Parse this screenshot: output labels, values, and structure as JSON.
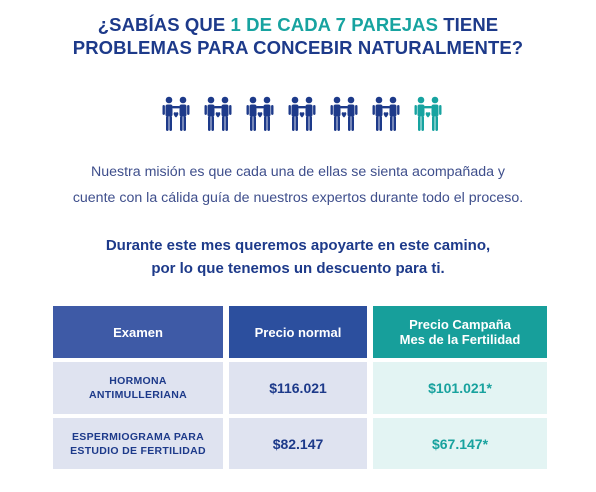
{
  "headline": {
    "line1_start": "¿SABÍAS QUE ",
    "line1_accent": "1 DE CADA 7 PAREJAS",
    "line1_end": " TIENE",
    "line2": "PROBLEMAS PARA CONCEBIR NATURALMENTE?"
  },
  "couples": {
    "total": 7,
    "highlighted": 1,
    "default_color": "#1d3a8a",
    "highlight_color": "#17a3a0",
    "icon": "couple-icon"
  },
  "mission": {
    "line1": "Nuestra misión es que cada una de ellas se sienta acompañada y",
    "line2": "cuente con la cálida guía de nuestros expertos durante todo el proceso."
  },
  "offer": {
    "line1": "Durante este mes queremos apoyarte en este camino,",
    "line2": "por lo que tenemos un descuento para ti."
  },
  "table": {
    "headers": {
      "exam": "Examen",
      "normal": "Precio normal",
      "campaign_line1": "Precio Campaña",
      "campaign_line2": "Mes de la Fertilidad"
    },
    "rows": [
      {
        "exam_line1": "HORMONA",
        "exam_line2": "ANTIMULLERIANA",
        "normal": "$116.021",
        "campaign": "$101.021*"
      },
      {
        "exam_line1": "ESPERMIOGRAMA PARA",
        "exam_line2": "ESTUDIO DE FERTILIDAD",
        "normal": "$82.147",
        "campaign": "$67.147*"
      }
    ]
  }
}
